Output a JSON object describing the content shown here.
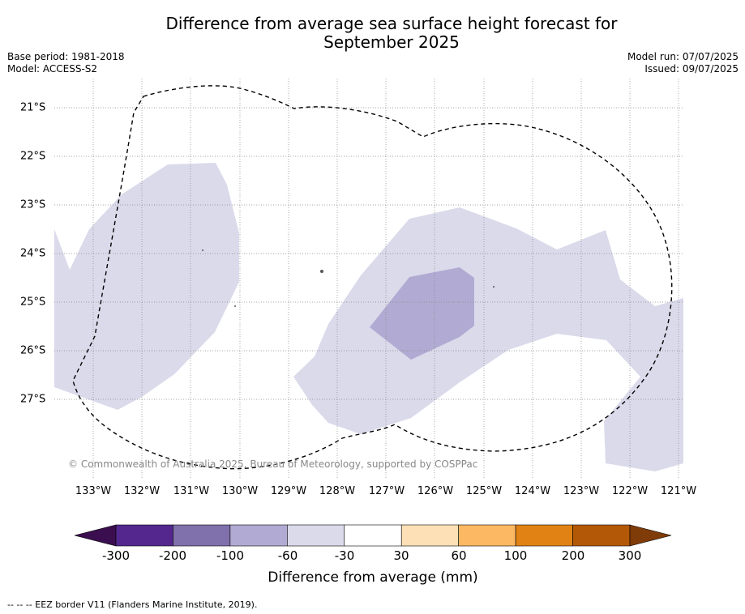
{
  "title_line1": "Difference from average sea surface height forecast for",
  "title_line2": "September 2025",
  "meta_left": {
    "base_period": "Base period: 1981-2018",
    "model": "Model: ACCESS-S2"
  },
  "meta_right": {
    "model_run": "Model run: 07/07/2025",
    "issued": "Issued: 09/07/2025"
  },
  "map": {
    "lon_ticks": [
      "133°W",
      "132°W",
      "131°W",
      "130°W",
      "129°W",
      "128°W",
      "127°W",
      "126°W",
      "125°W",
      "124°W",
      "123°W",
      "122°W",
      "121°W"
    ],
    "lat_ticks": [
      "21°S",
      "22°S",
      "23°S",
      "24°S",
      "25°S",
      "26°S",
      "27°S"
    ],
    "copyright": "© Commonwealth of Australia 2025, Bureau of Meteorology, supported by COSPPac",
    "categories_shown": [
      "-60 to -30 mm",
      "-100 to -60 mm",
      "-30 to 30 mm"
    ],
    "border_style": "dashed"
  },
  "colorbar": {
    "ticks": [
      "-300",
      "-200",
      "-100",
      "-60",
      "-30",
      "30",
      "60",
      "100",
      "200",
      "300"
    ],
    "colors": [
      "#3b0f4f",
      "#54278f",
      "#8070ab",
      "#b1aad2",
      "#dadaeb",
      "#ffffff",
      "#fee0b6",
      "#fdb863",
      "#e08214",
      "#b35806",
      "#7f3b08"
    ],
    "label": "Difference from average (mm)"
  },
  "footer": "--  --  -- EEZ border V11 (Flanders Marine Institute, 2019)."
}
